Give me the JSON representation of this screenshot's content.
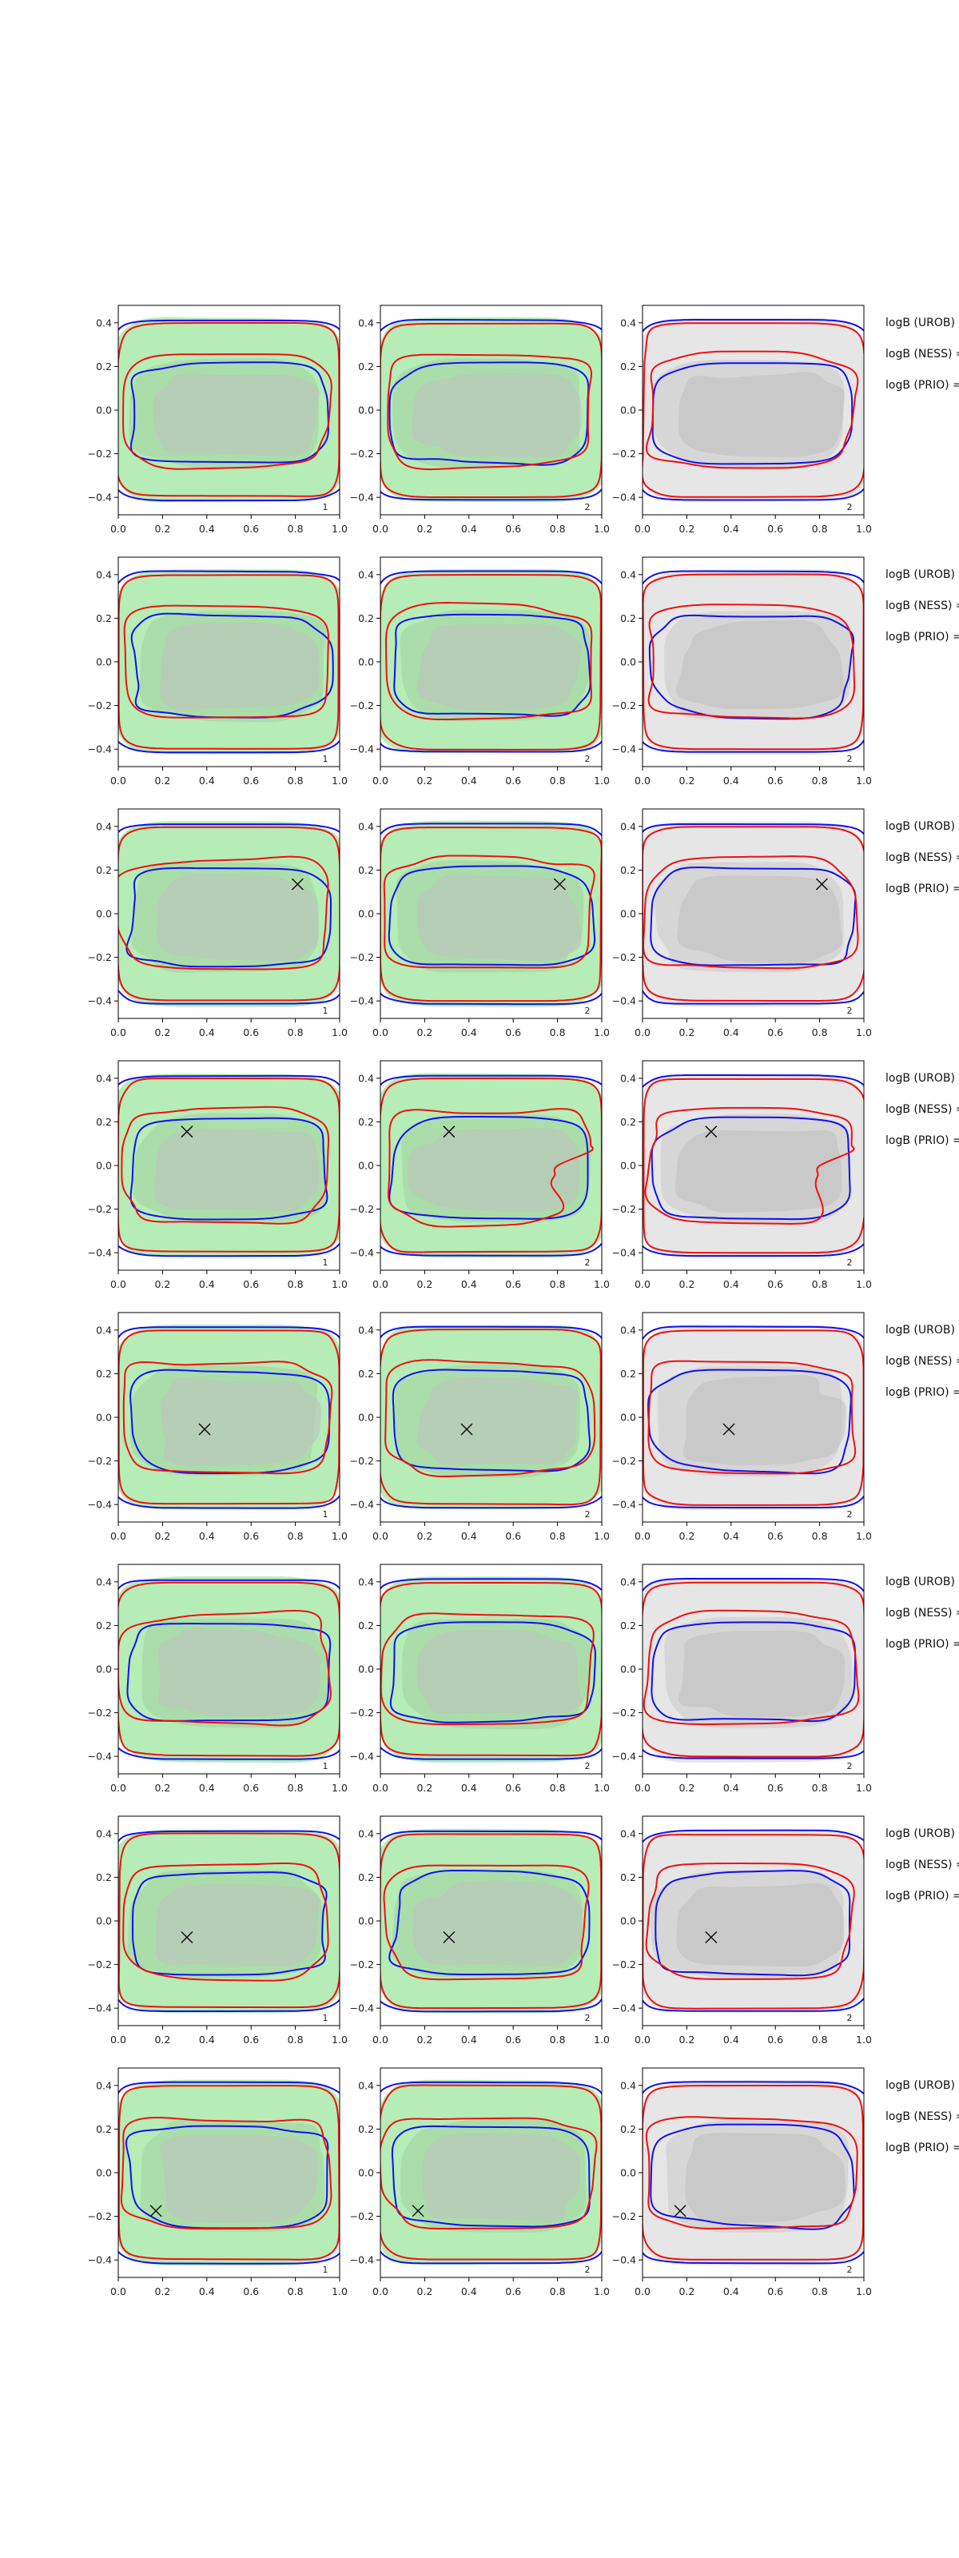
{
  "figure": {
    "title": "",
    "colors": {
      "prior_fill": "#b6ecb6",
      "posterior_fill": "#bfbfbf",
      "null_fill": "#d4d4d4",
      "blue_contour": "#1010ee",
      "red_contour": "#ee1010",
      "marker": "#111111"
    },
    "right_labels": [
      "logB (UROB) =",
      "logB (NESS) =",
      "logB (PRIO) ="
    ]
  },
  "chart_data": {
    "type": "contour-grid",
    "rows": 8,
    "cols": 3,
    "xlim": [
      0.0,
      1.0
    ],
    "ylim": [
      -0.48,
      0.48
    ],
    "xticks": [
      0.0,
      0.2,
      0.4,
      0.6,
      0.8,
      1.0
    ],
    "xtick_labels": [
      "0.0",
      "0.2",
      "0.4",
      "0.6",
      "0.8",
      "1.0"
    ],
    "yticks": [
      -0.4,
      -0.2,
      0.0,
      0.2,
      0.4
    ],
    "ytick_labels": [
      "−0.4",
      "−0.2",
      "0.0",
      "0.2",
      "0.4"
    ],
    "panel_tags": [
      "1",
      "2",
      "2"
    ],
    "series": [
      {
        "name": "outer contour (blue)",
        "color": "#1010ee"
      },
      {
        "name": "outer contour (red)",
        "color": "#ee1010"
      }
    ],
    "markers": [
      null,
      null,
      {
        "x": 0.81,
        "y": 0.135
      },
      {
        "x": 0.31,
        "y": 0.155
      },
      {
        "x": 0.39,
        "y": -0.055
      },
      null,
      {
        "x": 0.31,
        "y": -0.075
      },
      {
        "x": 0.17,
        "y": -0.175
      }
    ]
  }
}
